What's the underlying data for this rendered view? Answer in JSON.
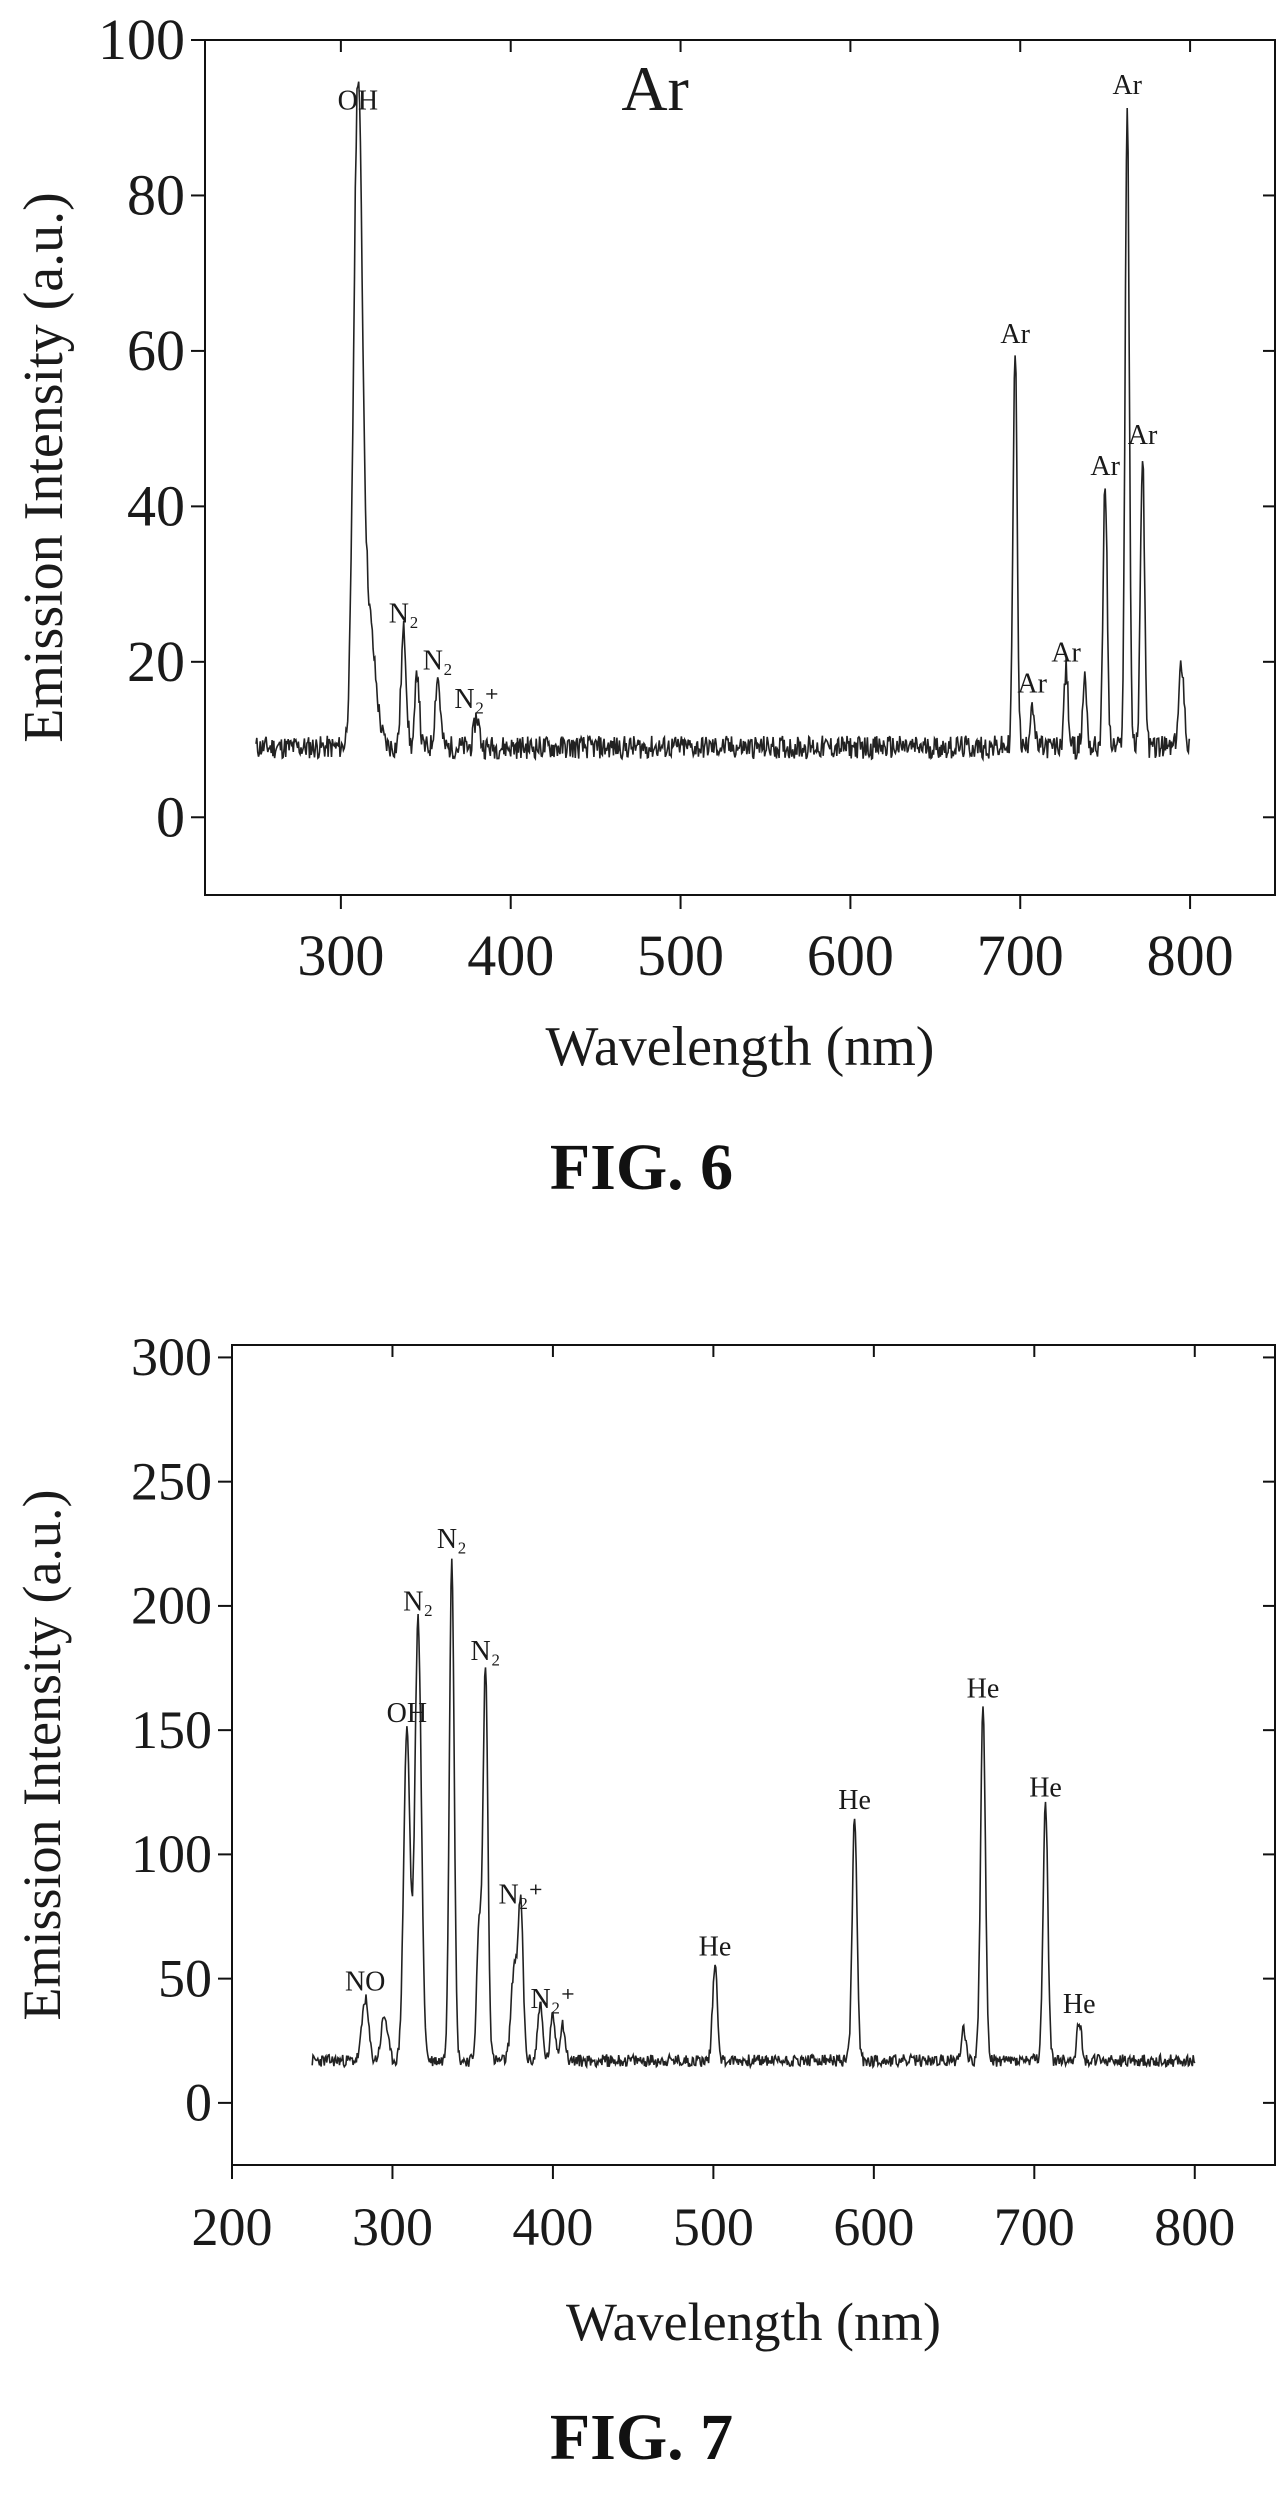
{
  "figures": [
    {
      "caption": "FIG. 6",
      "chart_data": {
        "type": "line",
        "title": "Ar",
        "xlabel": "Wavelength (nm)",
        "ylabel": "Emission Intensity (a.u.)",
        "xlim": [
          220,
          850
        ],
        "ylim": [
          -10,
          100
        ],
        "xticks": [
          300,
          400,
          500,
          600,
          700,
          800
        ],
        "xtick_labels": [
          "300",
          "400",
          "500",
          "600",
          "700",
          "800"
        ],
        "yticks": [
          0,
          20,
          40,
          60,
          80,
          100
        ],
        "ytick_labels": [
          "0",
          "20",
          "40",
          "60",
          "80",
          "100"
        ],
        "baseline": 9,
        "x_range": [
          250,
          800
        ],
        "peaks": [
          {
            "x": 310,
            "y": 90,
            "w": 2.5,
            "label": "OH"
          },
          {
            "x": 316,
            "y": 26,
            "w": 4
          },
          {
            "x": 337,
            "y": 24,
            "w": 1.5,
            "label": "N₂"
          },
          {
            "x": 345,
            "y": 19,
            "w": 1.2
          },
          {
            "x": 357,
            "y": 18,
            "w": 1.5,
            "label": "N₂"
          },
          {
            "x": 380,
            "y": 13,
            "w": 1.5,
            "label": "N₂⁺"
          },
          {
            "x": 697,
            "y": 60,
            "w": 1.2,
            "label": "Ar"
          },
          {
            "x": 707,
            "y": 15,
            "w": 1.2,
            "label": "Ar"
          },
          {
            "x": 727,
            "y": 19,
            "w": 1.2,
            "label": "Ar"
          },
          {
            "x": 738,
            "y": 18,
            "w": 1.2
          },
          {
            "x": 750,
            "y": 43,
            "w": 1.2,
            "label": "Ar"
          },
          {
            "x": 763,
            "y": 92,
            "w": 1.2,
            "label": "Ar"
          },
          {
            "x": 772,
            "y": 47,
            "w": 1.2,
            "label": "Ar"
          },
          {
            "x": 795,
            "y": 20,
            "w": 1.5
          }
        ]
      }
    },
    {
      "caption": "FIG. 7",
      "chart_data": {
        "type": "line",
        "title": "",
        "xlabel": "Wavelength (nm)",
        "ylabel": "Emission Intensity (a.u.)",
        "xlim": [
          200,
          850
        ],
        "ylim": [
          -25,
          305
        ],
        "xticks": [
          200,
          300,
          400,
          500,
          600,
          700,
          800
        ],
        "xtick_labels": [
          "200",
          "300",
          "400",
          "500",
          "600",
          "700",
          "800"
        ],
        "yticks": [
          0,
          50,
          100,
          150,
          200,
          250,
          300
        ],
        "ytick_labels": [
          "0",
          "50",
          "100",
          "150",
          "200",
          "250",
          "300"
        ],
        "baseline": 17,
        "x_range": [
          250,
          800
        ],
        "peaks": [
          {
            "x": 283,
            "y": 42,
            "w": 2,
            "label": "NO"
          },
          {
            "x": 295,
            "y": 35,
            "w": 2
          },
          {
            "x": 309,
            "y": 150,
            "w": 2,
            "label": "OH"
          },
          {
            "x": 316,
            "y": 195,
            "w": 2,
            "label": "N₂"
          },
          {
            "x": 337,
            "y": 220,
            "w": 1.5,
            "label": "N₂"
          },
          {
            "x": 354,
            "y": 70,
            "w": 1.5
          },
          {
            "x": 358,
            "y": 175,
            "w": 1.5,
            "label": "N₂"
          },
          {
            "x": 376,
            "y": 55,
            "w": 2
          },
          {
            "x": 380,
            "y": 77,
            "w": 1.5,
            "label": "N₂⁺"
          },
          {
            "x": 392,
            "y": 40,
            "w": 1.5
          },
          {
            "x": 400,
            "y": 35,
            "w": 1.5,
            "label": "N₂⁺"
          },
          {
            "x": 406,
            "y": 32,
            "w": 1.5
          },
          {
            "x": 501,
            "y": 56,
            "w": 1.5,
            "label": "He"
          },
          {
            "x": 588,
            "y": 115,
            "w": 1.5,
            "label": "He"
          },
          {
            "x": 656,
            "y": 30,
            "w": 1.5
          },
          {
            "x": 668,
            "y": 160,
            "w": 1.5,
            "label": "He"
          },
          {
            "x": 707,
            "y": 120,
            "w": 1.5,
            "label": "He"
          },
          {
            "x": 728,
            "y": 33,
            "w": 1.5,
            "label": "He"
          }
        ]
      }
    }
  ]
}
